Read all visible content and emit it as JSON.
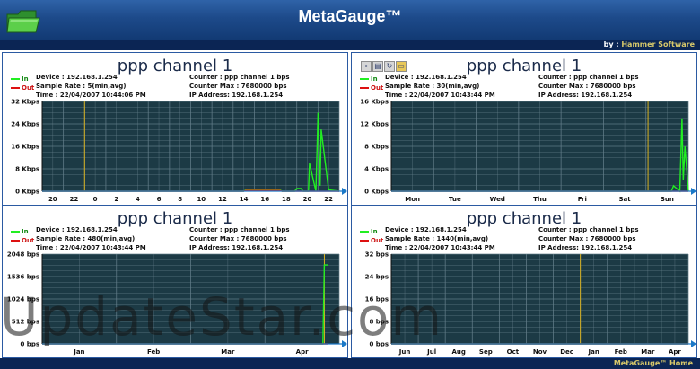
{
  "app": {
    "title": "MetaGauge™",
    "by_prefix": "by : ",
    "by_company": "Hammer Software",
    "footer": "MetaGauge™ Home"
  },
  "toolbar_icons": [
    "save-icon",
    "print-icon",
    "refresh-icon",
    "folder-icon"
  ],
  "watermark": "UpdateStar.com",
  "colors": {
    "header": "#1d4a8a",
    "chart_bg": "#1c3a45",
    "grid": "#66808c",
    "series_in": "#22ee22",
    "series_out": "#dd1111",
    "marker": "#d8b020"
  },
  "panels": [
    {
      "title": "ppp channel 1",
      "device": "Device : 192.168.1.254",
      "sample_rate": "Sample Rate : 5(min,avg)",
      "time": "Time : 22/04/2007 10:44:06 PM",
      "counter": "Counter : ppp channel 1 bps",
      "counter_max": "Counter Max : 7680000 bps",
      "ip": "IP Address: 192.168.1.254",
      "legend": {
        "in": "In",
        "out": "Out"
      },
      "chart_data": {
        "type": "line",
        "x_labels": [
          "20",
          "22",
          "0",
          "2",
          "4",
          "6",
          "8",
          "10",
          "12",
          "14",
          "16",
          "18",
          "20",
          "22"
        ],
        "y_labels": [
          "32 Kbps",
          "24 Kbps",
          "16 Kbps",
          "8 Kbps",
          "0 Kbps"
        ],
        "ylim": [
          0,
          32
        ],
        "marker_x": 2,
        "series": [
          {
            "name": "In",
            "x": [
              0,
              9.5,
              9.6,
              11.2,
              11.3,
              11.9,
              12.0,
              12.2,
              12.3,
              12.55,
              12.6,
              12.9,
              13.0,
              13.1,
              13.15,
              13.5,
              14.0
            ],
            "values": [
              0,
              0,
              0.5,
              0.5,
              0,
              0,
              1,
              1,
              0,
              0,
              10,
              0,
              28,
              2,
              22,
              0.5,
              0
            ]
          },
          {
            "name": "Out",
            "x": [
              0,
              9.5,
              9.6,
              11.2,
              11.3,
              14.0
            ],
            "values": [
              0,
              0,
              0.3,
              0.3,
              0,
              0
            ]
          }
        ]
      }
    },
    {
      "title": "ppp channel 1",
      "device": "Device : 192.168.1.254",
      "sample_rate": "Sample Rate : 30(min,avg)",
      "time": "Time : 22/04/2007 10:43:44 PM",
      "counter": "Counter : ppp channel 1 bps",
      "counter_max": "Counter Max : 7680000 bps",
      "ip": "IP Address: 192.168.1.254",
      "legend": {
        "in": "In",
        "out": "Out"
      },
      "chart_data": {
        "type": "line",
        "x_labels": [
          "Mon",
          "Tue",
          "Wed",
          "Thu",
          "Fri",
          "Sat",
          "Sun"
        ],
        "y_labels": [
          "16 Kbps",
          "12 Kbps",
          "8 Kbps",
          "4 Kbps",
          "0 Kbps"
        ],
        "ylim": [
          0,
          16
        ],
        "marker_x": 6.05,
        "series": [
          {
            "name": "In",
            "x": [
              0,
              6.6,
              6.65,
              6.8,
              6.85,
              6.88,
              6.92,
              7.0
            ],
            "values": [
              0,
              0,
              1,
              0,
              13,
              2,
              8,
              0
            ]
          },
          {
            "name": "Out",
            "x": [
              0,
              7.0
            ],
            "values": [
              0,
              0
            ]
          }
        ]
      }
    },
    {
      "title": "ppp channel 1",
      "device": "Device : 192.168.1.254",
      "sample_rate": "Sample Rate : 480(min,avg)",
      "time": "Time : 22/04/2007 10:43:44 PM",
      "counter": "Counter : ppp channel 1 bps",
      "counter_max": "Counter Max : 7680000 bps",
      "ip": "IP Address: 192.168.1.254",
      "legend": {
        "in": "In",
        "out": "Out"
      },
      "chart_data": {
        "type": "line",
        "x_labels": [
          "Jan",
          "Feb",
          "Mar",
          "Apr"
        ],
        "y_labels": [
          "2048 bps",
          "1536 bps",
          "1024 bps",
          "512 bps",
          "0 bps"
        ],
        "ylim": [
          0,
          2048
        ],
        "marker_x": 3.8,
        "series": [
          {
            "name": "In",
            "x": [
              0,
              3.78,
              3.8,
              3.85
            ],
            "values": [
              0,
              0,
              1800,
              1800
            ]
          },
          {
            "name": "Out",
            "x": [
              0,
              3.85
            ],
            "values": [
              0,
              0
            ]
          }
        ]
      }
    },
    {
      "title": "ppp channel 1",
      "device": "Device : 192.168.1.254",
      "sample_rate": "Sample Rate : 1440(min,avg)",
      "time": "Time : 22/04/2007 10:43:44 PM",
      "counter": "Counter : ppp channel 1 bps",
      "counter_max": "Counter Max : 7680000 bps",
      "ip": "IP Address: 192.168.1.254",
      "legend": {
        "in": "In",
        "out": "Out"
      },
      "chart_data": {
        "type": "line",
        "x_labels": [
          "Jun",
          "Jul",
          "Aug",
          "Sep",
          "Oct",
          "Nov",
          "Dec",
          "Jan",
          "Feb",
          "Mar",
          "Apr"
        ],
        "y_labels": [
          "32 bps",
          "24 bps",
          "16 bps",
          "8 bps",
          "0 bps"
        ],
        "ylim": [
          0,
          32
        ],
        "marker_x": 7,
        "series": [
          {
            "name": "In",
            "x": [
              0,
              11
            ],
            "values": [
              0,
              0
            ]
          },
          {
            "name": "Out",
            "x": [
              0,
              11
            ],
            "values": [
              0,
              0
            ]
          }
        ]
      }
    }
  ]
}
